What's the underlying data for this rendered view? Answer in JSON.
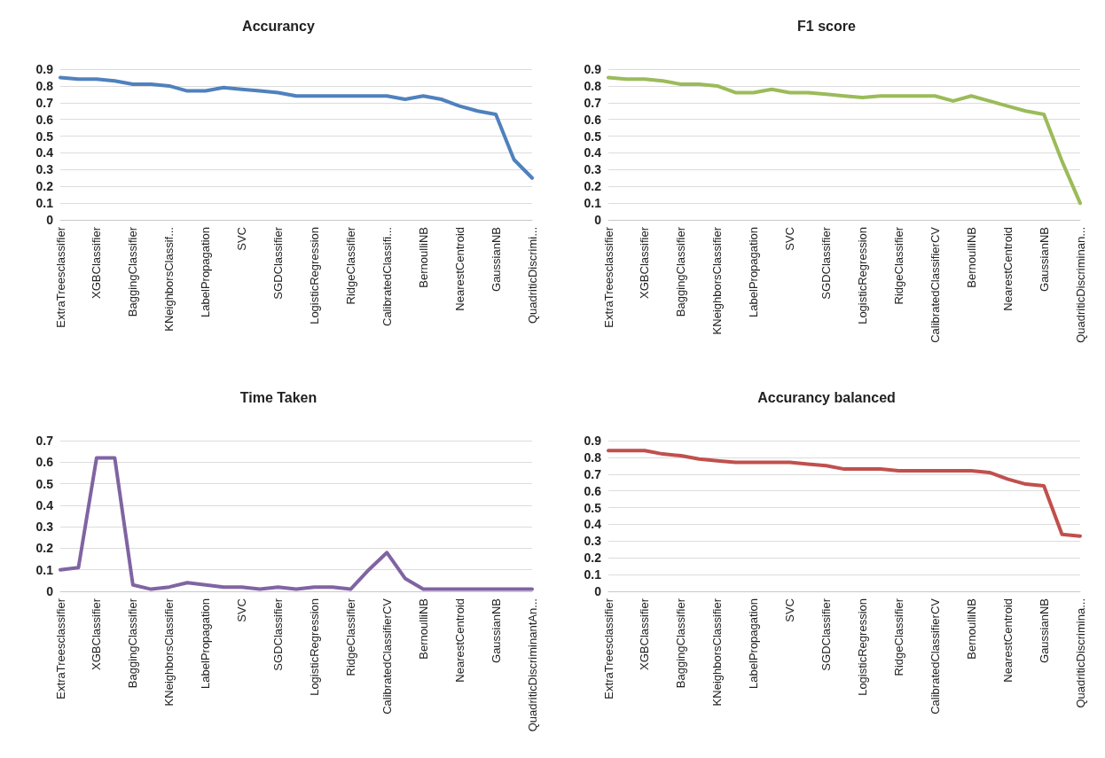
{
  "chart_data": [
    {
      "type": "line",
      "title": "Accurancy",
      "categories": [
        "ExtraTreesclassifier",
        null,
        "XGBClassifier",
        null,
        "BaggingClassifier",
        null,
        "KNeighborsClassif...",
        null,
        "LabelPropagation",
        null,
        "SVC",
        null,
        "SGDClassifier",
        null,
        "LogisticRegression",
        null,
        "RidgeClassifier",
        null,
        "CalibratedClassifi...",
        null,
        "BernoulliNB",
        null,
        "NearestCentroid",
        null,
        "GaussianNB",
        null,
        "QuadriticDiscrimi..."
      ],
      "series": [
        {
          "color": "#4f81bd",
          "values": [
            0.85,
            0.84,
            0.84,
            0.83,
            0.81,
            0.81,
            0.8,
            0.77,
            0.77,
            0.79,
            0.78,
            0.77,
            0.76,
            0.74,
            0.74,
            0.74,
            0.74,
            0.74,
            0.74,
            0.72,
            0.74,
            0.72,
            0.68,
            0.65,
            0.63,
            0.36,
            0.25
          ]
        }
      ],
      "ylim": [
        0,
        0.9
      ],
      "yticks": [
        0,
        0.1,
        0.2,
        0.3,
        0.4,
        0.5,
        0.6,
        0.7,
        0.8,
        0.9
      ],
      "grid": "y",
      "marker": "none"
    },
    {
      "type": "line",
      "title": "F1 score",
      "categories": [
        "ExtraTreesclassifier",
        null,
        "XGBClassifier",
        null,
        "BaggingClassifier",
        null,
        "KNeighborsClassifier",
        null,
        "LabelPropagation",
        null,
        "SVC",
        null,
        "SGDClassifier",
        null,
        "LogisticRegression",
        null,
        "RidgeClassifier",
        null,
        "CalibratedClassifierCV",
        null,
        "BernoulliNB",
        null,
        "NearestCentroid",
        null,
        "GaussianNB",
        null,
        "QuadriticDiscriminan..."
      ],
      "series": [
        {
          "color": "#9bbb59",
          "values": [
            0.85,
            0.84,
            0.84,
            0.83,
            0.81,
            0.81,
            0.8,
            0.76,
            0.76,
            0.78,
            0.76,
            0.76,
            0.75,
            0.74,
            0.73,
            0.74,
            0.74,
            0.74,
            0.74,
            0.71,
            0.74,
            0.71,
            0.68,
            0.65,
            0.63,
            0.35,
            0.1
          ]
        }
      ],
      "ylim": [
        0,
        0.9
      ],
      "yticks": [
        0,
        0.1,
        0.2,
        0.3,
        0.4,
        0.5,
        0.6,
        0.7,
        0.8,
        0.9
      ],
      "grid": "y",
      "marker": "none"
    },
    {
      "type": "line",
      "title": "Time Taken",
      "categories": [
        "ExtraTreesclassifier",
        null,
        "XGBClassifier",
        null,
        "BaggingClassifier",
        null,
        "KNeighborsClassifier",
        null,
        "LabelPropagation",
        null,
        "SVC",
        null,
        "SGDClassifier",
        null,
        "LogisticRegression",
        null,
        "RidgeClassifier",
        null,
        "CalibratedClassifierCV",
        null,
        "BernoulliNB",
        null,
        "NearestCentroid",
        null,
        "GaussianNB",
        null,
        "QuadriticDiscriminantAn..."
      ],
      "series": [
        {
          "color": "#8064a2",
          "values": [
            0.1,
            0.11,
            0.62,
            0.62,
            0.03,
            0.01,
            0.02,
            0.04,
            0.03,
            0.02,
            0.02,
            0.01,
            0.02,
            0.01,
            0.02,
            0.02,
            0.01,
            0.1,
            0.18,
            0.06,
            0.01,
            0.01,
            0.01,
            0.01,
            0.01,
            0.01,
            0.01
          ]
        }
      ],
      "ylim": [
        0,
        0.7
      ],
      "yticks": [
        0,
        0.1,
        0.2,
        0.3,
        0.4,
        0.5,
        0.6,
        0.7
      ],
      "grid": "y",
      "marker": "none"
    },
    {
      "type": "line",
      "title": "Accurancy balanced",
      "categories": [
        "ExtraTreesclassifier",
        null,
        "XGBClassifier",
        null,
        "BaggingClassifier",
        null,
        "KNeighborsClassifier",
        null,
        "LabelPropagation",
        null,
        "SVC",
        null,
        "SGDClassifier",
        null,
        "LogisticRegression",
        null,
        "RidgeClassifier",
        null,
        "CalibratedClassifierCV",
        null,
        "BernoulliNB",
        null,
        "NearestCentroid",
        null,
        "GaussianNB",
        null,
        "QuadriticDiscrimina..."
      ],
      "series": [
        {
          "color": "#c0504d",
          "values": [
            0.84,
            0.84,
            0.84,
            0.82,
            0.81,
            0.79,
            0.78,
            0.77,
            0.77,
            0.77,
            0.77,
            0.76,
            0.75,
            0.73,
            0.73,
            0.73,
            0.72,
            0.72,
            0.72,
            0.72,
            0.72,
            0.71,
            0.67,
            0.64,
            0.63,
            0.34,
            0.33
          ]
        }
      ],
      "ylim": [
        0,
        0.9
      ],
      "yticks": [
        0,
        0.1,
        0.2,
        0.3,
        0.4,
        0.5,
        0.6,
        0.7,
        0.8,
        0.9
      ],
      "grid": "y",
      "marker": "none"
    }
  ]
}
